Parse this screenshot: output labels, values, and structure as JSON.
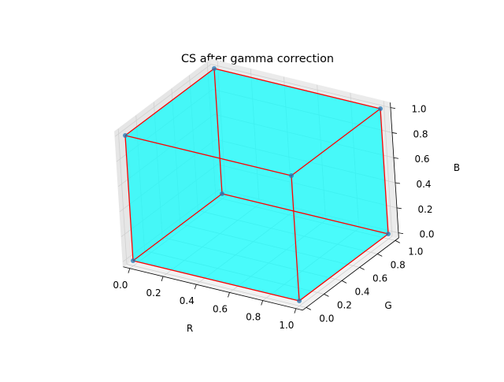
{
  "chart_data": {
    "type": "scatter3d",
    "title": "CS after gamma correction",
    "xlabel": "R",
    "ylabel": "G",
    "zlabel": "B",
    "xlim": [
      0,
      1
    ],
    "ylim": [
      0,
      1
    ],
    "zlim": [
      0,
      1
    ],
    "grid": true,
    "x_ticks": [
      "0.0",
      "0.2",
      "0.4",
      "0.6",
      "0.8",
      "1.0"
    ],
    "y_ticks": [
      "0.0",
      "0.2",
      "0.4",
      "0.6",
      "0.8",
      "1.0"
    ],
    "z_ticks": [
      "0.0",
      "0.2",
      "0.4",
      "0.6",
      "0.8",
      "1.0"
    ],
    "points": [
      {
        "r": 0,
        "g": 0,
        "b": 0
      },
      {
        "r": 1,
        "g": 0,
        "b": 0
      },
      {
        "r": 0,
        "g": 1,
        "b": 0
      },
      {
        "r": 0,
        "g": 0,
        "b": 1
      },
      {
        "r": 1,
        "g": 1,
        "b": 0
      },
      {
        "r": 1,
        "g": 0,
        "b": 1
      },
      {
        "r": 0,
        "g": 1,
        "b": 1
      },
      {
        "r": 1,
        "g": 1,
        "b": 1
      }
    ],
    "edges": [
      [
        0,
        1
      ],
      [
        0,
        2
      ],
      [
        0,
        3
      ],
      [
        1,
        4
      ],
      [
        1,
        5
      ],
      [
        2,
        4
      ],
      [
        2,
        6
      ],
      [
        3,
        5
      ],
      [
        3,
        6
      ],
      [
        4,
        7
      ],
      [
        5,
        7
      ],
      [
        6,
        7
      ]
    ],
    "face_color": "#00ffff",
    "face_alpha": 0.45,
    "edge_color": "#ff0000",
    "marker_color": "#1f77b4"
  }
}
